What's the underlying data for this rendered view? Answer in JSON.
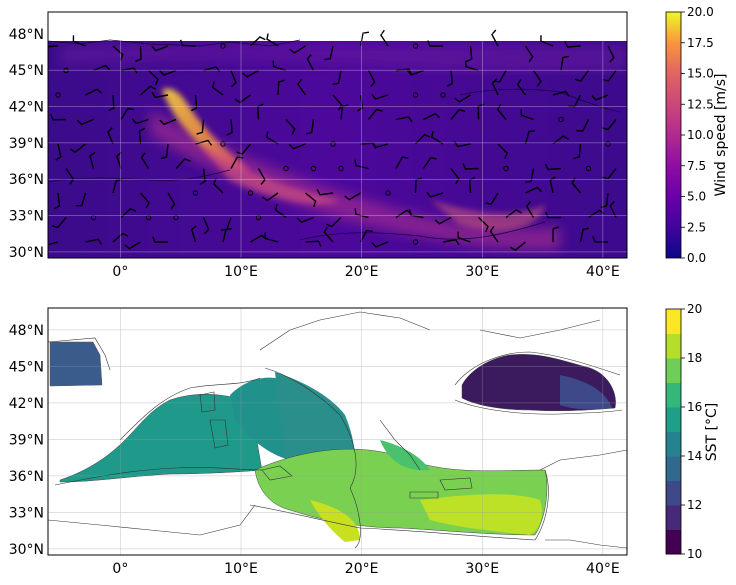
{
  "figure": {
    "panels": [
      {
        "id": "wind",
        "lon_range": [
          -6,
          42
        ],
        "lat_range": [
          29.5,
          49.8
        ],
        "x_ticks": [
          {
            "v": 0,
            "label": "0°"
          },
          {
            "v": 10,
            "label": "10°E"
          },
          {
            "v": 20,
            "label": "20°E"
          },
          {
            "v": 30,
            "label": "30°E"
          },
          {
            "v": 40,
            "label": "40°E"
          }
        ],
        "y_ticks": [
          {
            "v": 30,
            "label": "30°N"
          },
          {
            "v": 33,
            "label": "33°N"
          },
          {
            "v": 36,
            "label": "36°N"
          },
          {
            "v": 39,
            "label": "39°N"
          },
          {
            "v": 42,
            "label": "42°N"
          },
          {
            "v": 45,
            "label": "45°N"
          },
          {
            "v": 48,
            "label": "48°N"
          }
        ],
        "colorbar": {
          "label": "Wind speed [m/s]",
          "colormap": "plasma",
          "min": 0,
          "max": 20,
          "ticks": [
            "0.0",
            "2.5",
            "5.0",
            "7.5",
            "10.0",
            "12.5",
            "15.0",
            "17.5",
            "20.0"
          ]
        }
      },
      {
        "id": "sst",
        "lon_range": [
          -6,
          42
        ],
        "lat_range": [
          29.5,
          49.8
        ],
        "x_ticks": [
          {
            "v": 0,
            "label": "0°"
          },
          {
            "v": 10,
            "label": "10°E"
          },
          {
            "v": 20,
            "label": "20°E"
          },
          {
            "v": 30,
            "label": "30°E"
          },
          {
            "v": 40,
            "label": "40°E"
          }
        ],
        "y_ticks": [
          {
            "v": 30,
            "label": "30°N"
          },
          {
            "v": 33,
            "label": "33°N"
          },
          {
            "v": 36,
            "label": "36°N"
          },
          {
            "v": 39,
            "label": "39°N"
          },
          {
            "v": 42,
            "label": "42°N"
          },
          {
            "v": 45,
            "label": "45°N"
          },
          {
            "v": 48,
            "label": "48°N"
          }
        ],
        "colorbar": {
          "label": "SST [°C]",
          "colormap": "viridis",
          "min": 10,
          "max": 20,
          "levels": 10,
          "ticks": [
            "10",
            "12",
            "14",
            "16",
            "18",
            "20"
          ]
        }
      }
    ]
  }
}
